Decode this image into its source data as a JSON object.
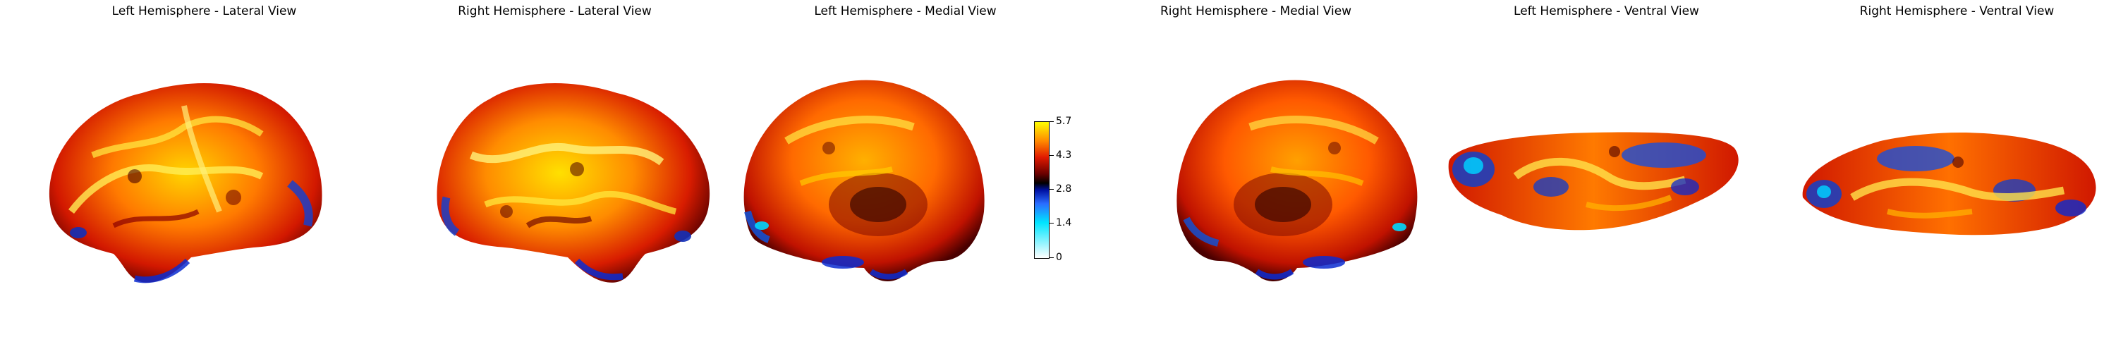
{
  "panels": [
    {
      "title": "Left Hemisphere - Lateral View"
    },
    {
      "title": "Right Hemisphere - Lateral View"
    },
    {
      "title": "Left Hemisphere - Medial View"
    },
    {
      "title": "Right Hemisphere - Medial View"
    },
    {
      "title": "Left Hemisphere - Ventral View"
    },
    {
      "title": "Right Hemisphere - Ventral View"
    }
  ],
  "colorbar": {
    "min": 0,
    "max": 5.7,
    "ticks": [
      "5.7",
      "4.3",
      "2.8",
      "1.4",
      "0"
    ],
    "colormap": [
      "#ffffff",
      "#00e5ff",
      "#2a6cff",
      "#0010a0",
      "#000000",
      "#6b0000",
      "#e01a00",
      "#ff8a00",
      "#ffff00"
    ]
  }
}
